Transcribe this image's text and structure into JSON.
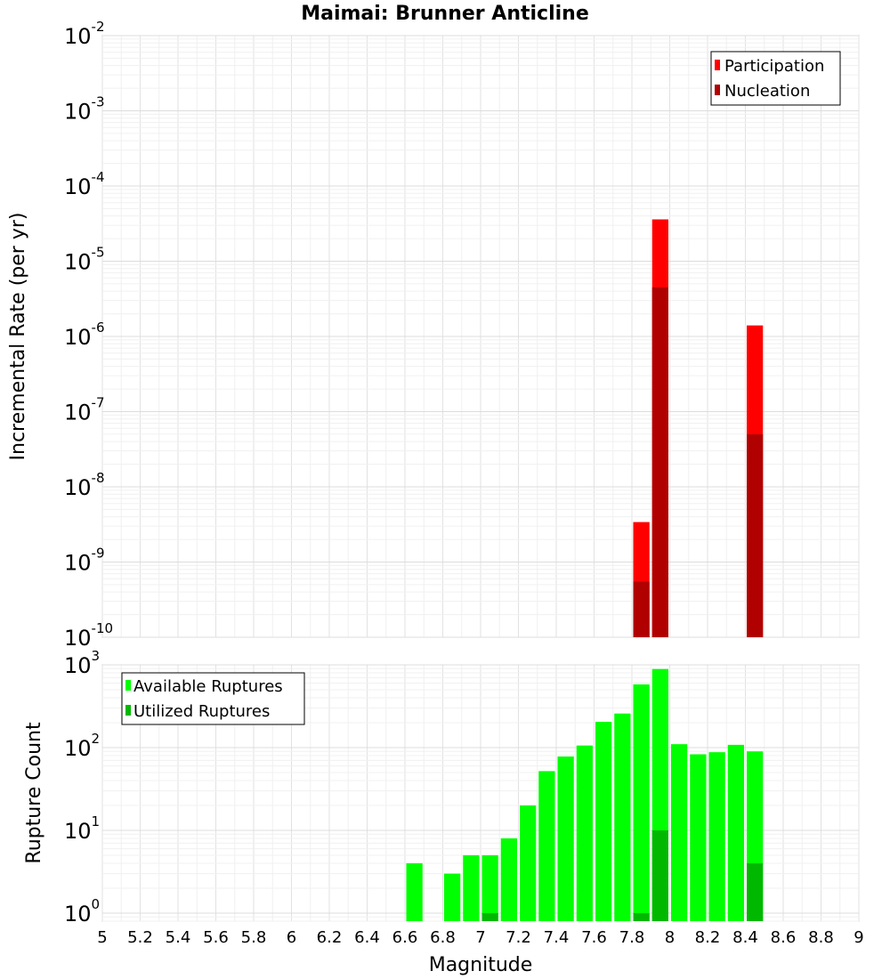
{
  "chart_data": [
    {
      "type": "bar",
      "title": "Maimai: Brunner Anticline",
      "xlabel": "Magnitude",
      "ylabel": "Incremental Rate (per yr)",
      "yscale": "log",
      "ylim": [
        1e-10,
        0.01
      ],
      "xlim": [
        5,
        9
      ],
      "legend": "top-right",
      "bin_width": 0.1,
      "series": [
        {
          "name": "Participation",
          "color": "#ff0000",
          "points": [
            {
              "x": 7.85,
              "y": 3.4e-09
            },
            {
              "x": 7.95,
              "y": 3.6e-05
            },
            {
              "x": 8.45,
              "y": 1.4e-06
            }
          ]
        },
        {
          "name": "Nucleation",
          "color": "#b00000",
          "points": [
            {
              "x": 7.85,
              "y": 5.5e-10
            },
            {
              "x": 7.95,
              "y": 4.5e-06
            },
            {
              "x": 8.45,
              "y": 5e-08
            }
          ]
        }
      ]
    },
    {
      "type": "bar",
      "xlabel": "Magnitude",
      "ylabel": "Rupture Count",
      "yscale": "log",
      "ylim": [
        0.8,
        1000
      ],
      "xlim": [
        5,
        9
      ],
      "legend": "top-left",
      "bin_width": 0.1,
      "series": [
        {
          "name": "Available Ruptures",
          "color": "#00ff00",
          "points": [
            {
              "x": 6.65,
              "y": 4
            },
            {
              "x": 6.85,
              "y": 3
            },
            {
              "x": 6.95,
              "y": 5
            },
            {
              "x": 7.05,
              "y": 5
            },
            {
              "x": 7.15,
              "y": 8
            },
            {
              "x": 7.25,
              "y": 20
            },
            {
              "x": 7.35,
              "y": 52
            },
            {
              "x": 7.45,
              "y": 78
            },
            {
              "x": 7.55,
              "y": 106
            },
            {
              "x": 7.65,
              "y": 205
            },
            {
              "x": 7.75,
              "y": 258
            },
            {
              "x": 7.85,
              "y": 580
            },
            {
              "x": 7.95,
              "y": 890
            },
            {
              "x": 8.05,
              "y": 110
            },
            {
              "x": 8.15,
              "y": 83
            },
            {
              "x": 8.25,
              "y": 88
            },
            {
              "x": 8.35,
              "y": 108
            },
            {
              "x": 8.45,
              "y": 90
            }
          ]
        },
        {
          "name": "Utilized Ruptures",
          "color": "#00b800",
          "points": [
            {
              "x": 7.05,
              "y": 1
            },
            {
              "x": 7.85,
              "y": 1
            },
            {
              "x": 7.95,
              "y": 10
            },
            {
              "x": 8.45,
              "y": 4
            }
          ]
        }
      ]
    }
  ],
  "axes": {
    "x_ticks": [
      "5",
      "5.2",
      "5.4",
      "5.6",
      "5.8",
      "6",
      "6.2",
      "6.4",
      "6.6",
      "6.8",
      "7",
      "7.2",
      "7.4",
      "7.6",
      "7.8",
      "8",
      "8.2",
      "8.4",
      "8.6",
      "8.8",
      "9"
    ],
    "top_y_ticks": [
      {
        "base": "10",
        "exp": "-2"
      },
      {
        "base": "10",
        "exp": "-3"
      },
      {
        "base": "10",
        "exp": "-4"
      },
      {
        "base": "10",
        "exp": "-5"
      },
      {
        "base": "10",
        "exp": "-6"
      },
      {
        "base": "10",
        "exp": "-7"
      },
      {
        "base": "10",
        "exp": "-8"
      },
      {
        "base": "10",
        "exp": "-9"
      },
      {
        "base": "10",
        "exp": "-10"
      }
    ],
    "bottom_y_ticks": [
      {
        "base": "10",
        "exp": "3"
      },
      {
        "base": "10",
        "exp": "2"
      },
      {
        "base": "10",
        "exp": "1"
      },
      {
        "base": "10",
        "exp": "0"
      }
    ]
  }
}
